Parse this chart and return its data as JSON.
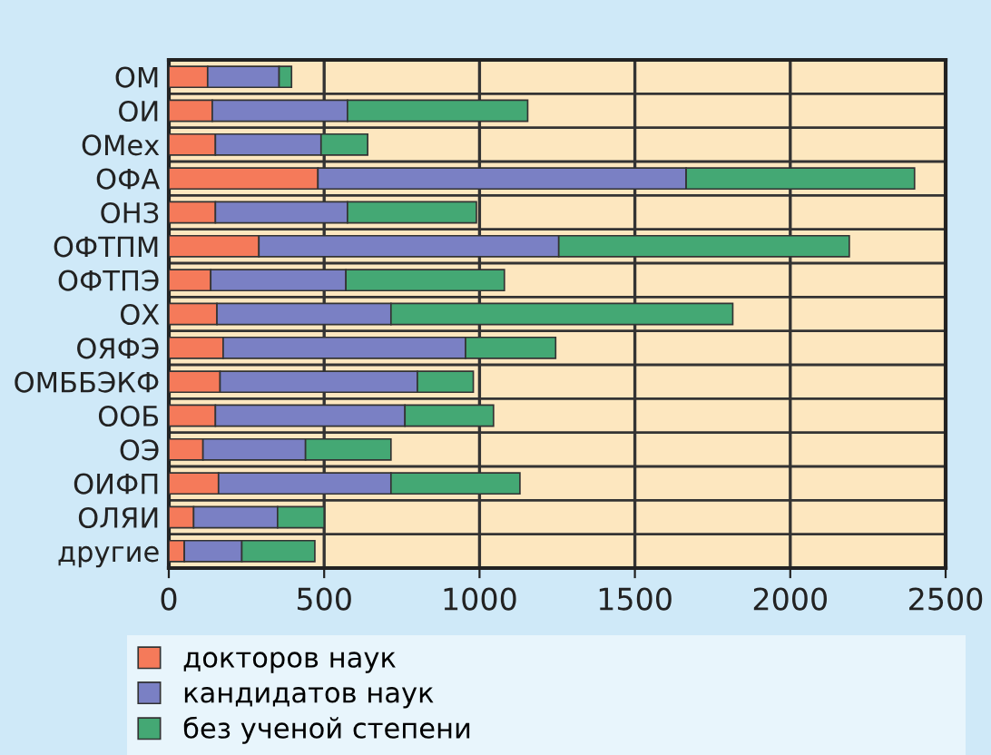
{
  "chart_data": {
    "type": "bar",
    "orientation": "horizontal",
    "stacked": true,
    "categories": [
      "ОМ",
      "ОИ",
      "ОМех",
      "ОФА",
      "ОНЗ",
      "ОФТПМ",
      "ОФТПЭ",
      "ОХ",
      "ОЯФЭ",
      "ОМББЭКФ",
      "ООБ",
      "ОЭ",
      "ОИФП",
      "ОЛЯИ",
      "другие"
    ],
    "series": [
      {
        "name": "докторов наук",
        "color": "#f57a5a",
        "values": [
          125,
          140,
          150,
          480,
          150,
          290,
          135,
          155,
          175,
          165,
          150,
          110,
          160,
          80,
          50
        ]
      },
      {
        "name": "кандидатов наук",
        "color": "#7a80c4",
        "values": [
          230,
          435,
          340,
          1185,
          425,
          965,
          435,
          560,
          780,
          635,
          610,
          330,
          555,
          270,
          185
        ]
      },
      {
        "name": "без ученой степени",
        "color": "#44a874",
        "values": [
          40,
          580,
          150,
          735,
          415,
          935,
          510,
          1100,
          290,
          180,
          285,
          275,
          415,
          150,
          235
        ]
      }
    ],
    "xlim": [
      0,
      2500
    ],
    "xticks": [
      0,
      500,
      1000,
      1500,
      2000,
      2500
    ],
    "grid": true,
    "legend": "bottom"
  }
}
